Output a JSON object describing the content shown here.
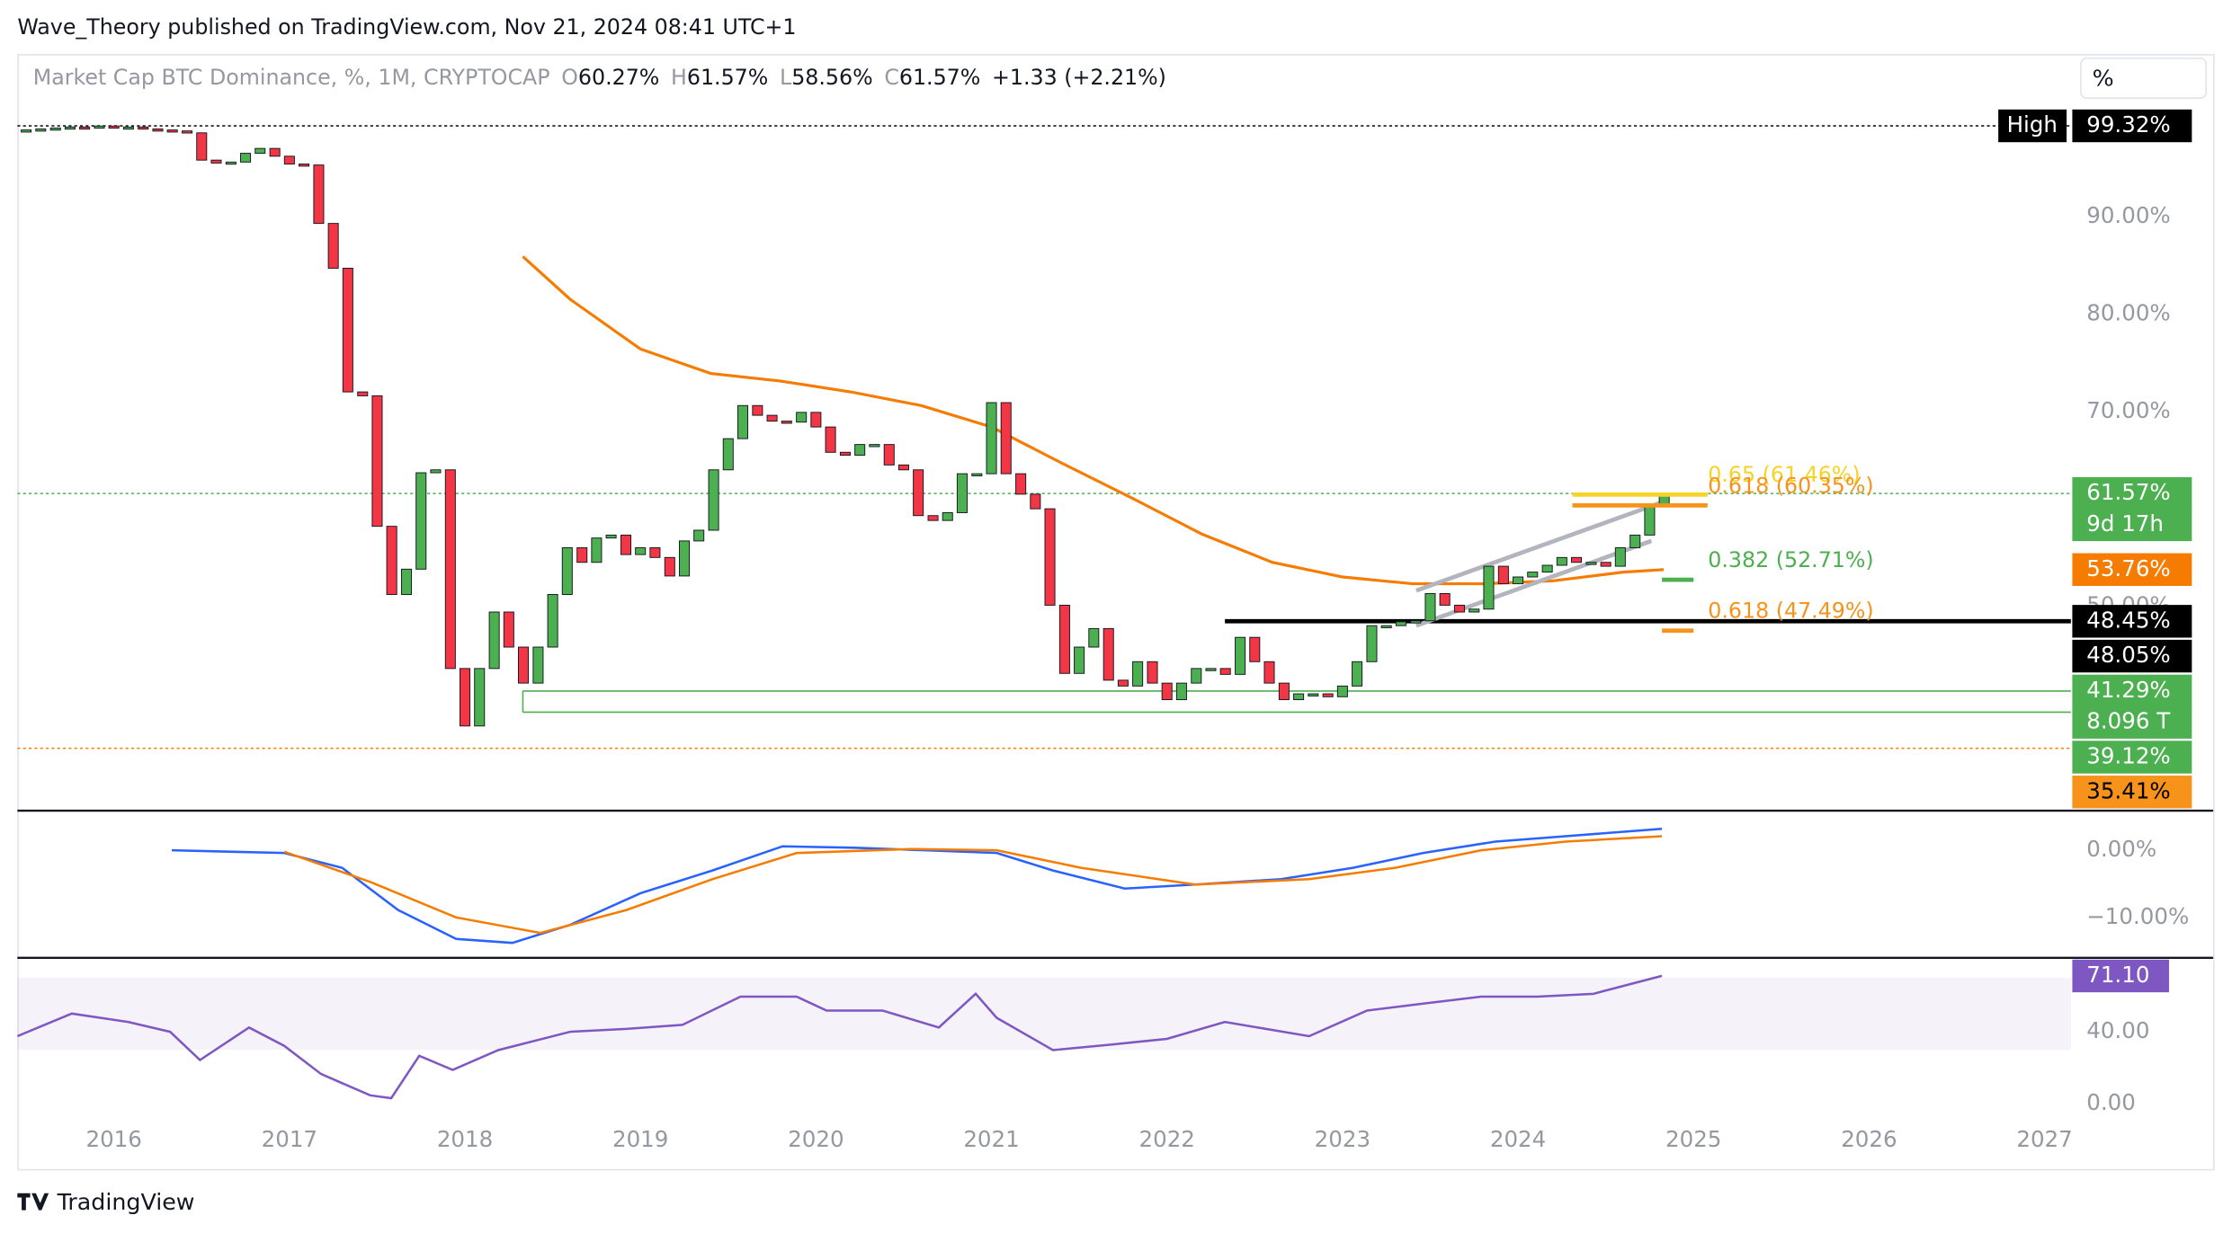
{
  "header": {
    "published": "Wave_Theory published on TradingView.com, Nov 21, 2024 08:41 UTC+1",
    "scale_button": "%",
    "brand": "TradingView"
  },
  "chart_data": [
    {
      "type": "candlestick",
      "title": "Market Cap BTC Dominance, %, 1M, CRYPTOCAP",
      "legend": [
        {
          "key": "O",
          "text": "60.27%"
        },
        {
          "key": "H",
          "text": "61.57%"
        },
        {
          "key": "L",
          "text": "58.56%"
        },
        {
          "key": "C",
          "text": "61.57%"
        }
      ],
      "change": "+1.33 (+2.21%)",
      "up_color": "#4caf50",
      "down_color": "#f23645",
      "xlim": [
        2015.45,
        2027.15
      ],
      "xticks": [
        2016,
        2017,
        2018,
        2019,
        2020,
        2021,
        2022,
        2023,
        2024,
        2025,
        2026,
        2027
      ],
      "ylim": [
        29.3,
        106.4
      ],
      "yticks": [
        {
          "value": 90,
          "label": "90.00%"
        },
        {
          "value": 80,
          "label": "80.00%"
        },
        {
          "value": 70,
          "label": "70.00%"
        },
        {
          "value": 50,
          "label": "50.00%"
        }
      ],
      "x": [
        2015.5,
        2015.583,
        2015.667,
        2015.75,
        2015.833,
        2015.917,
        2016,
        2016.083,
        2016.167,
        2016.25,
        2016.333,
        2016.417,
        2016.5,
        2016.583,
        2016.667,
        2016.75,
        2016.833,
        2016.917,
        2017,
        2017.083,
        2017.167,
        2017.25,
        2017.333,
        2017.417,
        2017.5,
        2017.583,
        2017.667,
        2017.75,
        2017.833,
        2017.917,
        2018,
        2018.083,
        2018.167,
        2018.25,
        2018.333,
        2018.417,
        2018.5,
        2018.583,
        2018.667,
        2018.75,
        2018.833,
        2018.917,
        2019,
        2019.083,
        2019.167,
        2019.25,
        2019.333,
        2019.417,
        2019.5,
        2019.583,
        2019.667,
        2019.75,
        2019.833,
        2019.917,
        2020,
        2020.083,
        2020.167,
        2020.25,
        2020.333,
        2020.417,
        2020.5,
        2020.583,
        2020.667,
        2020.75,
        2020.833,
        2020.917,
        2021,
        2021.083,
        2021.167,
        2021.25,
        2021.333,
        2021.417,
        2021.5,
        2021.583,
        2021.667,
        2021.75,
        2021.833,
        2021.917,
        2022,
        2022.083,
        2022.167,
        2022.25,
        2022.333,
        2022.417,
        2022.5,
        2022.583,
        2022.667,
        2022.75,
        2022.833,
        2022.917,
        2023,
        2023.083,
        2023.167,
        2023.25,
        2023.333,
        2023.417,
        2023.5,
        2023.583,
        2023.667,
        2023.75,
        2023.833,
        2023.917,
        2024,
        2024.083,
        2024.167,
        2024.25,
        2024.333,
        2024.417,
        2024.5,
        2024.583,
        2024.667,
        2024.75,
        2024.833
      ],
      "close": [
        98.9,
        99,
        99.1,
        99.2,
        99.1,
        99.3,
        99.2,
        99.2,
        99,
        98.9,
        98.8,
        98.6,
        95.8,
        95.5,
        95.6,
        96.5,
        97,
        96.2,
        95.4,
        95.3,
        89.3,
        84.7,
        72,
        71.6,
        58.2,
        51.2,
        53.8,
        63.7,
        64,
        43.6,
        37.7,
        43.6,
        49.4,
        45.8,
        42.1,
        45.8,
        51.2,
        56,
        54.5,
        57,
        57.3,
        55.3,
        56,
        55,
        53.1,
        56.7,
        57.8,
        64,
        67.2,
        70.6,
        69.6,
        69,
        68.9,
        69.9,
        68.4,
        65.8,
        65.5,
        66.6,
        66.6,
        64.5,
        64,
        59.3,
        58.8,
        59.6,
        63.6,
        63.6,
        70.9,
        63.6,
        61.5,
        60,
        50.1,
        43.1,
        45.8,
        47.7,
        42.4,
        41.8,
        44.3,
        42.1,
        40.4,
        42.1,
        43.6,
        43.6,
        43,
        46.8,
        44.3,
        42.1,
        40.4,
        41,
        41,
        40.7,
        41.8,
        44.3,
        48,
        48,
        48.4,
        48.5,
        51.3,
        50.1,
        49.4,
        49.7,
        54.1,
        52.3,
        53,
        53.5,
        54.2,
        55,
        54.5,
        54.5,
        54.1,
        56,
        57.3,
        60.4,
        61.57
      ],
      "ema": {
        "color": "#f57c00",
        "x": [
          2018.33,
          2018.6,
          2019.0,
          2019.4,
          2019.8,
          2020.2,
          2020.6,
          2021.0,
          2021.4,
          2021.8,
          2022.2,
          2022.6,
          2023.0,
          2023.4,
          2023.8,
          2024.2,
          2024.6,
          2024.83
        ],
        "values": [
          85.9,
          81.5,
          76.4,
          73.9,
          73.1,
          72,
          70.6,
          68.4,
          64.7,
          61.1,
          57.4,
          54.5,
          53,
          52.3,
          52.3,
          52.6,
          53.5,
          53.76
        ]
      },
      "levels": [
        {
          "value": 99.32,
          "color": "#131722",
          "style": "dotted"
        },
        {
          "value": 61.57,
          "color": "#4caf50",
          "style": "dotted"
        },
        {
          "value": 35.41,
          "color": "#f57c00",
          "style": "dotted"
        },
        {
          "value": 48.45,
          "color": "#000000",
          "from": 2022.33
        },
        {
          "value": 41.29,
          "color": "#4caf50",
          "from": 2018.33
        },
        {
          "value": 39.12,
          "color": "#4caf50",
          "from": 2018.33
        }
      ],
      "fib": [
        {
          "value": 61.46,
          "color": "#f5d328",
          "from": 2024.31,
          "to": 2025.08,
          "label": "0.65 (61.46%)"
        },
        {
          "value": 60.35,
          "color": "#f7931a",
          "from": 2024.31,
          "to": 2025.08,
          "label": "0.618 (60.35%)"
        },
        {
          "value": 52.71,
          "color": "#4caf50",
          "from": 2024.82,
          "to": 2025.0,
          "label": "0.382 (52.71%)"
        },
        {
          "value": 47.49,
          "color": "#f7931a",
          "from": 2024.82,
          "to": 2025.0,
          "label": "0.618 (47.49%)"
        }
      ],
      "trendlines": [
        {
          "color": "#b2b5be",
          "from": [
            2023.42,
            51.6
          ],
          "to": [
            2024.84,
            60.8
          ]
        },
        {
          "color": "#b2b5be",
          "from": [
            2023.42,
            48.0
          ],
          "to": [
            2024.76,
            56.7
          ]
        }
      ],
      "high": {
        "key": "High",
        "label": "99.32%",
        "value": 99.32
      },
      "price_tags": [
        {
          "label": "61.57%",
          "value": 61.57,
          "color": "#4caf50",
          "text_color": "#ffffff"
        },
        {
          "label": "9d 17h",
          "color": "#4caf50",
          "text_color": "#ffffff"
        },
        {
          "label": "53.76%",
          "value": 53.76,
          "color": "#f57c00",
          "text_color": "#ffffff"
        },
        {
          "label": "48.45%",
          "value": 48.45,
          "color": "#000000",
          "text_color": "#ffffff"
        },
        {
          "label": "48.05%",
          "value": 48.05,
          "color": "#000000",
          "text_color": "#ffffff"
        },
        {
          "label": "41.29%",
          "value": 41.29,
          "color": "#4caf50",
          "text_color": "#ffffff"
        },
        {
          "label": "8.096 T",
          "color": "#4caf50",
          "text_color": "#ffffff"
        },
        {
          "label": "39.12%",
          "value": 39.12,
          "color": "#4caf50",
          "text_color": "#ffffff"
        },
        {
          "label": "35.41%",
          "value": 35.41,
          "color": "#f7931a",
          "text_color": "#000000"
        }
      ]
    },
    {
      "type": "line",
      "ylim": [
        -15.7,
        5.5
      ],
      "yticks": [
        {
          "value": 0,
          "label": "0.00%"
        },
        {
          "value": -10,
          "label": "−10.00%"
        }
      ],
      "series": [
        {
          "color": "#2962ff",
          "x": [
            2016.33,
            2016.97,
            2017.3,
            2017.62,
            2017.95,
            2018.27,
            2018.6,
            2019.0,
            2019.41,
            2019.81,
            2020.22,
            2020.62,
            2021.03,
            2021.35,
            2021.76,
            2022.16,
            2022.65,
            2023.06,
            2023.46,
            2023.87,
            2024.27,
            2024.82
          ],
          "values": [
            0,
            -0.4,
            -2.6,
            -8.9,
            -13.2,
            -13.8,
            -11.1,
            -6.4,
            -3,
            0.6,
            0.4,
            0,
            -0.4,
            -3,
            -5.7,
            -5.1,
            -4.3,
            -2.6,
            -0.4,
            1.3,
            2.1,
            3.2
          ]
        },
        {
          "color": "#f57c00",
          "x": [
            2016.97,
            2017.46,
            2017.95,
            2018.43,
            2018.92,
            2019.41,
            2019.89,
            2020.54,
            2021.03,
            2021.51,
            2022.16,
            2022.81,
            2023.3,
            2023.79,
            2024.27,
            2024.82
          ],
          "values": [
            -0.2,
            -4.7,
            -10,
            -12.3,
            -8.9,
            -4.3,
            -0.4,
            0.2,
            0,
            -2.6,
            -5.1,
            -4.3,
            -2.6,
            0,
            1.3,
            2.1
          ]
        }
      ]
    },
    {
      "type": "line",
      "ylim": [
        -11,
        80
      ],
      "yticks": [
        {
          "value": 40,
          "label": "40.00"
        },
        {
          "value": 0,
          "label": "0.00"
        }
      ],
      "band": [
        30,
        70
      ],
      "series": [
        {
          "color": "#7e57c2",
          "x": [
            2015.45,
            2015.76,
            2016.08,
            2016.32,
            2016.49,
            2016.77,
            2016.97,
            2017.18,
            2017.46,
            2017.58,
            2017.74,
            2017.93,
            2018.19,
            2018.6,
            2018.92,
            2019.24,
            2019.57,
            2019.89,
            2020.06,
            2020.38,
            2020.7,
            2020.91,
            2021.03,
            2021.35,
            2021.68,
            2022.0,
            2022.33,
            2022.81,
            2023.14,
            2023.46,
            2023.79,
            2024.11,
            2024.43,
            2024.82
          ],
          "values": [
            37.6,
            50.2,
            45.5,
            40,
            24.3,
            42.4,
            32.2,
            16.5,
            4.7,
            3.1,
            26.7,
            18.8,
            29.8,
            40,
            41.6,
            43.9,
            59.6,
            59.6,
            51.8,
            51.8,
            42.4,
            61.2,
            47.8,
            29.8,
            32.9,
            36.1,
            45.5,
            37.6,
            51.8,
            55.7,
            59.6,
            59.6,
            61.2,
            71.1
          ]
        }
      ],
      "last_label": "71.10"
    }
  ]
}
